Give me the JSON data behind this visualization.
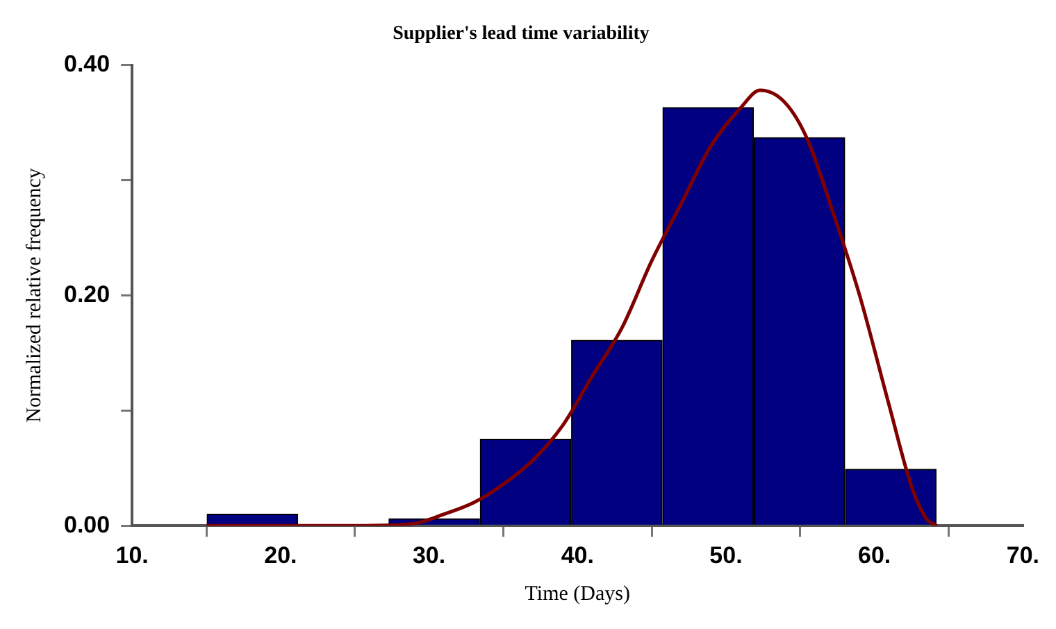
{
  "chart_data": {
    "type": "histogram",
    "title": "Supplier's lead time variability",
    "xlabel": "Time (Days)",
    "ylabel": "Normalized relative frequency",
    "bins": [
      15.0,
      21.2,
      27.3,
      33.4,
      39.6,
      45.7,
      51.9,
      58.0,
      64.2
    ],
    "values": [
      0.01,
      0,
      0.006,
      0.075,
      0.161,
      0.363,
      0.337,
      0.049
    ],
    "color": "#000080",
    "series": [
      {
        "type": "line",
        "color": "#800000",
        "x": [
          15,
          20,
          25,
          29,
          31,
          33,
          35,
          37,
          39,
          41,
          43,
          45,
          47,
          49,
          51,
          52.3,
          54,
          55.5,
          57,
          59,
          61,
          62.5,
          63.5,
          64.2
        ],
        "values": [
          0,
          0,
          0,
          0.002,
          0.01,
          0.02,
          0.036,
          0.057,
          0.087,
          0.13,
          0.172,
          0.23,
          0.28,
          0.33,
          0.363,
          0.378,
          0.367,
          0.335,
          0.28,
          0.2,
          0.104,
          0.034,
          0.006,
          0
        ]
      }
    ],
    "xlim": [
      10,
      70
    ],
    "ylim": [
      0,
      0.4
    ],
    "xticks": [
      {
        "value": 10,
        "label": "10."
      },
      {
        "value": 20,
        "label": "20."
      },
      {
        "value": 30,
        "label": "30."
      },
      {
        "value": 40,
        "label": "40."
      },
      {
        "value": 50,
        "label": "50."
      },
      {
        "value": 60,
        "label": "60."
      },
      {
        "value": 70,
        "label": "70."
      }
    ],
    "yticks": [
      {
        "value": 0,
        "label": "0.00"
      },
      {
        "value": 0.1,
        "label": null
      },
      {
        "value": 0.2,
        "label": "0.20"
      },
      {
        "value": 0.3,
        "label": null
      },
      {
        "value": 0.4,
        "label": "0.40"
      }
    ],
    "legend": false,
    "marker": "none",
    "line_style": "solid"
  }
}
